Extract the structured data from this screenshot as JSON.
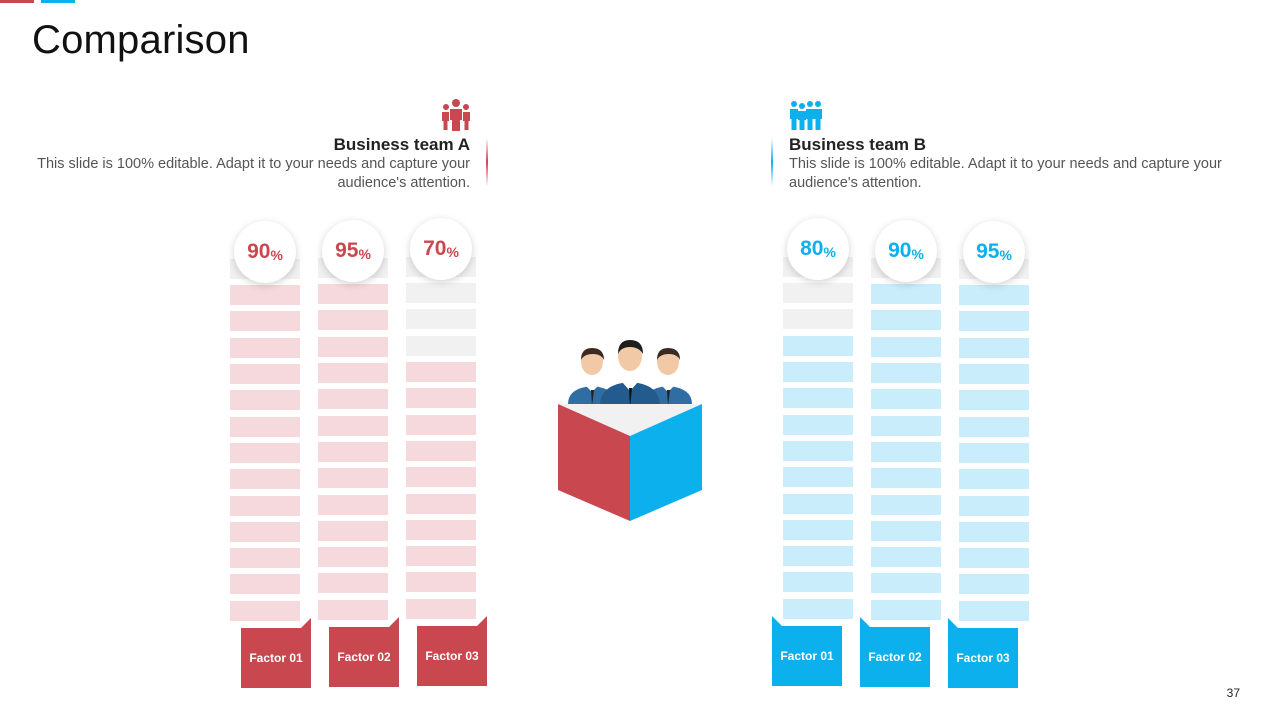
{
  "slide": {
    "title": "Comparison",
    "page_number": "37"
  },
  "colors": {
    "red": "#c9474f",
    "red_light": "#f5d9dc",
    "blue": "#0bb0ec",
    "blue_light": "#c9edfb",
    "empty": "#f1f1f1"
  },
  "team_a": {
    "name": "Business team A",
    "description": "This slide is 100% editable. Adapt it to your needs and capture your audience's attention.",
    "icon": "team-group-icon"
  },
  "team_b": {
    "name": "Business team B",
    "description": "This slide is 100% editable. Adapt it to your needs and capture your audience's attention.",
    "icon": "team-group-icon"
  },
  "chart_data": {
    "type": "bar",
    "segments_per_bar": 14,
    "unit": "%",
    "groups": [
      {
        "team": "Business team A",
        "color": "#c9474f",
        "factors": [
          {
            "label": "Factor 01",
            "value": 90
          },
          {
            "label": "Factor 02",
            "value": 95
          },
          {
            "label": "Factor 03",
            "value": 70
          }
        ]
      },
      {
        "team": "Business team B",
        "color": "#0bb0ec",
        "factors": [
          {
            "label": "Factor 01",
            "value": 80
          },
          {
            "label": "Factor 02",
            "value": 90
          },
          {
            "label": "Factor 03",
            "value": 95
          }
        ]
      }
    ]
  }
}
